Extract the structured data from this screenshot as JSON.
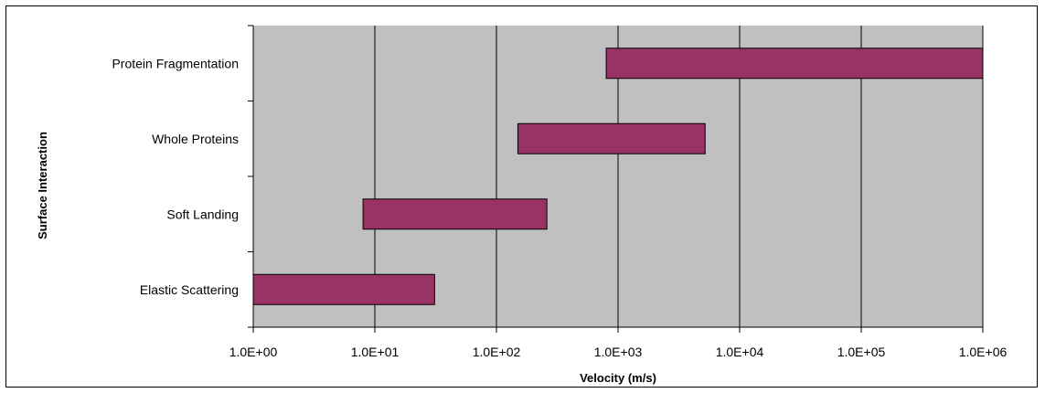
{
  "chart_data": {
    "type": "bar",
    "orientation": "horizontal",
    "subtype": "floating-range",
    "xlabel": "Velocity (m/s)",
    "ylabel": "Surface Interaction",
    "xscale": "log",
    "xlim": [
      1,
      1000000
    ],
    "xticks": [
      1,
      10,
      100,
      1000,
      10000,
      100000,
      1000000
    ],
    "xtick_labels": [
      "1.0E+00",
      "1.0E+01",
      "1.0E+02",
      "1.0E+03",
      "1.0E+04",
      "1.0E+05",
      "1.0E+06"
    ],
    "categories": [
      "Elastic Scattering",
      "Soft Landing",
      "Whole Proteins",
      "Protein Fragmentation"
    ],
    "ranges": [
      {
        "category": "Elastic Scattering",
        "low": 1,
        "high": 31
      },
      {
        "category": "Soft Landing",
        "low": 8,
        "high": 260
      },
      {
        "category": "Whole Proteins",
        "low": 150,
        "high": 5200
      },
      {
        "category": "Protein Fragmentation",
        "low": 800,
        "high": 1000000
      }
    ],
    "grid": "vertical major gridlines",
    "legend": "none",
    "colors": {
      "bar": "#993366",
      "plot_area": "#C0C0C0",
      "gridline": "#000000"
    }
  }
}
